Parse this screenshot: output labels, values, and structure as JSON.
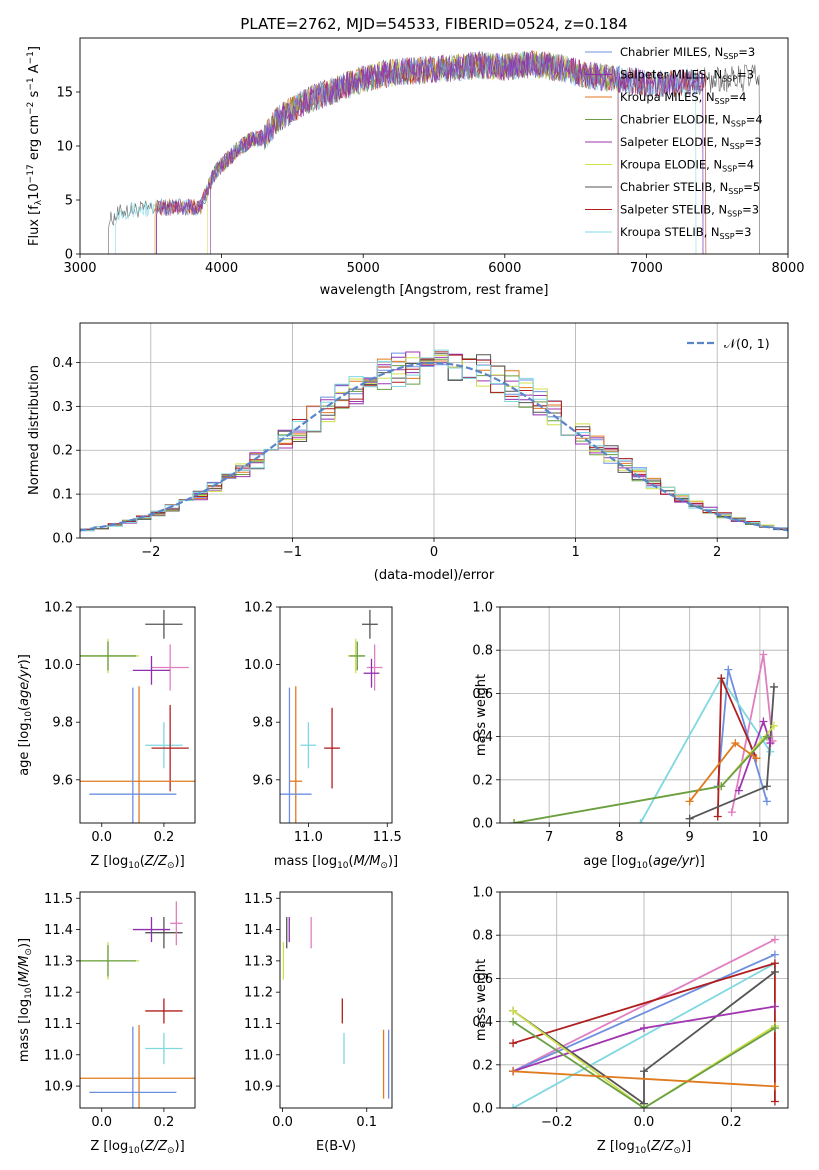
{
  "title": "PLATE=2762, MJD=54533, FIBERID=0524, z=0.184",
  "colors": {
    "chabrier_miles": "#6d8fe0",
    "salpeter_miles": "#8e2fae",
    "kroupa_miles": "#e07a1f",
    "chabrier_elodie": "#6a9f45",
    "salpeter_elodie": "#a235b0",
    "kroupa_elodie": "#cfe04a",
    "chabrier_stelib": "#555555",
    "salpeter_stelib": "#b01e1e",
    "kroupa_stelib": "#7fd8e0",
    "pink": "#e07fc0",
    "normal": "#5a85c8"
  },
  "chart_data": [
    {
      "type": "line",
      "id": "spectrum",
      "xlabel": "wavelength [Angstrom, rest frame]",
      "ylabel": "Flux [f",
      "ylabel_parts": [
        "Flux [f",
        "λ",
        "10",
        "−17",
        " erg cm",
        "−2",
        " s",
        "−1",
        " A",
        "−1",
        "]"
      ],
      "xlim": [
        3000,
        8000
      ],
      "ylim": [
        0,
        20
      ],
      "xticks": [
        "3000",
        "4000",
        "5000",
        "6000",
        "7000",
        "8000"
      ],
      "yticks": [
        "0",
        "5",
        "10",
        "15"
      ],
      "legend_position": "top-right",
      "legend": [
        {
          "label": "Chabrier MILES, N",
          "sub": "SSP",
          "tail": "=3",
          "color": "#6d8fe0"
        },
        {
          "label": "Salpeter MILES, N",
          "sub": "SSP",
          "tail": "=3",
          "color": "#8e2fae"
        },
        {
          "label": "Kroupa MILES, N",
          "sub": "SSP",
          "tail": "=4",
          "color": "#e07a1f"
        },
        {
          "label": "Chabrier ELODIE, N",
          "sub": "SSP",
          "tail": "=4",
          "color": "#6a9f45"
        },
        {
          "label": "Salpeter ELODIE, N",
          "sub": "SSP",
          "tail": "=3",
          "color": "#a235b0"
        },
        {
          "label": "Kroupa ELODIE, N",
          "sub": "SSP",
          "tail": "=4",
          "color": "#cfe04a"
        },
        {
          "label": "Chabrier STELIB, N",
          "sub": "SSP",
          "tail": "=5",
          "color": "#555555"
        },
        {
          "label": "Salpeter STELIB, N",
          "sub": "SSP",
          "tail": "=3",
          "color": "#b01e1e"
        },
        {
          "label": "Kroupa STELIB, N",
          "sub": "SSP",
          "tail": "=3",
          "color": "#7fd8e0"
        }
      ],
      "continuum": [
        [
          3200,
          3.0
        ],
        [
          3300,
          4.0
        ],
        [
          3500,
          4.2
        ],
        [
          3700,
          4.4
        ],
        [
          3850,
          4.3
        ],
        [
          3950,
          7.5
        ],
        [
          4000,
          8.2
        ],
        [
          4100,
          9.5
        ],
        [
          4200,
          10.5
        ],
        [
          4300,
          10.8
        ],
        [
          4400,
          12.5
        ],
        [
          4600,
          14.2
        ],
        [
          4800,
          15.2
        ],
        [
          5000,
          16.2
        ],
        [
          5200,
          16.8
        ],
        [
          5400,
          17.0
        ],
        [
          5600,
          17.2
        ],
        [
          5800,
          17.5
        ],
        [
          6000,
          17.3
        ],
        [
          6200,
          17.6
        ],
        [
          6400,
          17.2
        ],
        [
          6600,
          16.5
        ],
        [
          6800,
          16.2
        ],
        [
          7000,
          15.8
        ],
        [
          7200,
          15.8
        ],
        [
          7400,
          16.0
        ],
        [
          7600,
          16.2
        ],
        [
          7800,
          16.4
        ]
      ],
      "series_ranges": [
        {
          "color": "#555555",
          "start": 3200,
          "end": 7800
        },
        {
          "color": "#7fd8e0",
          "start": 3250,
          "end": 7350
        },
        {
          "color": "#e07a1f",
          "start": 3530,
          "end": 6800
        },
        {
          "color": "#b01e1e",
          "start": 3540,
          "end": 7420
        },
        {
          "color": "#cfe04a",
          "start": 3900,
          "end": 6800
        },
        {
          "color": "#6a9f45",
          "start": 3920,
          "end": 6800
        },
        {
          "color": "#a235b0",
          "start": 3920,
          "end": 6800
        },
        {
          "color": "#6d8fe0",
          "start": 3540,
          "end": 7400
        },
        {
          "color": "#8e2fae",
          "start": 3540,
          "end": 7400
        }
      ]
    },
    {
      "type": "bar",
      "id": "residuals",
      "xlabel": "(data-model)/error",
      "ylabel": "Normed distribution",
      "xlim": [
        -2.5,
        2.5
      ],
      "ylim": [
        0,
        0.49
      ],
      "xticks": [
        "−2",
        "−1",
        "0",
        "1",
        "2"
      ],
      "yticks": [
        "0.0",
        "0.1",
        "0.2",
        "0.3",
        "0.4"
      ],
      "grid": true,
      "legend_position": "top-right",
      "legend": [
        {
          "label": "𝒩(0, 1)",
          "color": "#5a85c8"
        }
      ],
      "bin_width": 0.1,
      "series_colors": [
        "#6d8fe0",
        "#8e2fae",
        "#e07a1f",
        "#6a9f45",
        "#a235b0",
        "#cfe04a",
        "#555555",
        "#b01e1e",
        "#7fd8e0"
      ]
    },
    {
      "type": "scatter",
      "id": "age_vs_Z",
      "xlabel": "Z [log",
      "ylabel": "age  [log",
      "xlim": [
        -0.07,
        0.3
      ],
      "ylim": [
        9.45,
        10.2
      ],
      "xticks": [
        "0.0",
        "0.2"
      ],
      "yticks": [
        "9.6",
        "9.8",
        "10.0",
        "10.2"
      ],
      "points": [
        {
          "x": 0.02,
          "y": 10.03,
          "xerr": 0.1,
          "yerr": 0.06,
          "color": "#cfe04a"
        },
        {
          "x": 0.02,
          "y": 10.03,
          "xerr": 0.09,
          "yerr": 0.05,
          "color": "#6a9f45"
        },
        {
          "x": 0.2,
          "y": 10.14,
          "xerr": 0.06,
          "yerr": 0.05,
          "color": "#555555"
        },
        {
          "x": 0.22,
          "y": 9.99,
          "xerr": 0.06,
          "yerr": 0.08,
          "color": "#e07fc0"
        },
        {
          "x": 0.16,
          "y": 9.98,
          "xerr": 0.06,
          "yerr": 0.05,
          "color": "#8e2fae"
        },
        {
          "x": 0.2,
          "y": 9.72,
          "xerr": 0.06,
          "yerr": 0.08,
          "color": "#7fd8e0"
        },
        {
          "x": 0.22,
          "y": 9.71,
          "xerr": 0.06,
          "yerr": 0.15,
          "color": "#b01e1e"
        },
        {
          "x": 0.12,
          "y": 9.595,
          "xerr": 0.23,
          "yerr": 0.33,
          "color": "#e07a1f"
        },
        {
          "x": 0.1,
          "y": 9.55,
          "xerr": 0.14,
          "yerr": 0.37,
          "color": "#6d8fe0"
        }
      ]
    },
    {
      "type": "scatter",
      "id": "age_vs_mass",
      "xlabel": "mass [log",
      "ylabel": "",
      "xlim": [
        10.82,
        11.53
      ],
      "ylim": [
        9.45,
        10.2
      ],
      "xticks": [
        "11.0",
        "11.5"
      ],
      "yticks": [
        "9.6",
        "9.8",
        "10.0",
        "10.2"
      ],
      "points": [
        {
          "x": 11.3,
          "y": 10.03,
          "xerr": 0.05,
          "yerr": 0.06,
          "color": "#cfe04a"
        },
        {
          "x": 11.31,
          "y": 10.03,
          "xerr": 0.05,
          "yerr": 0.05,
          "color": "#6a9f45"
        },
        {
          "x": 11.39,
          "y": 10.14,
          "xerr": 0.05,
          "yerr": 0.05,
          "color": "#555555"
        },
        {
          "x": 11.42,
          "y": 9.99,
          "xerr": 0.05,
          "yerr": 0.08,
          "color": "#e07fc0"
        },
        {
          "x": 11.4,
          "y": 9.97,
          "xerr": 0.05,
          "yerr": 0.05,
          "color": "#8e2fae"
        },
        {
          "x": 11.0,
          "y": 9.72,
          "xerr": 0.05,
          "yerr": 0.08,
          "color": "#7fd8e0"
        },
        {
          "x": 11.15,
          "y": 9.71,
          "xerr": 0.05,
          "yerr": 0.14,
          "color": "#b01e1e"
        },
        {
          "x": 10.92,
          "y": 9.595,
          "xerr": 0.04,
          "yerr": 0.33,
          "color": "#e07a1f"
        },
        {
          "x": 10.88,
          "y": 9.55,
          "xerr": 0.14,
          "yerr": 0.37,
          "color": "#6d8fe0"
        }
      ]
    },
    {
      "type": "line",
      "id": "massweight_vs_age",
      "xlabel": "age  [log",
      "ylabel": "mass weight",
      "xlim": [
        6.3,
        10.4
      ],
      "ylim": [
        0,
        1.0
      ],
      "xticks": [
        "7",
        "8",
        "9",
        "10"
      ],
      "yticks": [
        "0.0",
        "0.2",
        "0.4",
        "0.6",
        "0.8",
        "1.0"
      ],
      "grid": true,
      "series": [
        {
          "color": "#e07fc0",
          "points": [
            [
              9.6,
              0.05
            ],
            [
              10.05,
              0.78
            ],
            [
              10.18,
              0.38
            ]
          ]
        },
        {
          "color": "#6d8fe0",
          "points": [
            [
              9.4,
              0.17
            ],
            [
              9.55,
              0.71
            ],
            [
              10.1,
              0.1
            ]
          ]
        },
        {
          "color": "#7fd8e0",
          "points": [
            [
              8.3,
              0.0
            ],
            [
              9.45,
              0.67
            ],
            [
              10.15,
              0.33
            ]
          ]
        },
        {
          "color": "#b01e1e",
          "points": [
            [
              9.4,
              0.03
            ],
            [
              9.45,
              0.67
            ],
            [
              9.95,
              0.3
            ]
          ]
        },
        {
          "color": "#555555",
          "points": [
            [
              9.0,
              0.02
            ],
            [
              10.1,
              0.17
            ],
            [
              10.2,
              0.63
            ]
          ]
        },
        {
          "color": "#a235b0",
          "points": [
            [
              9.7,
              0.15
            ],
            [
              10.05,
              0.47
            ],
            [
              10.15,
              0.37
            ]
          ]
        },
        {
          "color": "#cfe04a",
          "points": [
            [
              6.5,
              0.0
            ],
            [
              9.45,
              0.17
            ],
            [
              10.2,
              0.45
            ]
          ]
        },
        {
          "color": "#6a9f45",
          "points": [
            [
              6.5,
              0.0
            ],
            [
              9.45,
              0.17
            ],
            [
              10.1,
              0.4
            ]
          ]
        },
        {
          "color": "#e07a1f",
          "points": [
            [
              9.0,
              0.1
            ],
            [
              9.65,
              0.37
            ],
            [
              9.95,
              0.3
            ]
          ]
        }
      ]
    },
    {
      "type": "scatter",
      "id": "mass_vs_Z",
      "xlabel": "Z [log",
      "ylabel": "mass [log",
      "xlim": [
        -0.07,
        0.3
      ],
      "ylim": [
        10.83,
        11.52
      ],
      "xticks": [
        "0.0",
        "0.2"
      ],
      "yticks": [
        "10.9",
        "11.0",
        "11.1",
        "11.2",
        "11.3",
        "11.4",
        "11.5"
      ],
      "points": [
        {
          "x": 0.02,
          "y": 11.3,
          "xerr": 0.1,
          "yerr": 0.06,
          "color": "#cfe04a"
        },
        {
          "x": 0.02,
          "y": 11.3,
          "xerr": 0.09,
          "yerr": 0.05,
          "color": "#6a9f45"
        },
        {
          "x": 0.2,
          "y": 11.39,
          "xerr": 0.06,
          "yerr": 0.05,
          "color": "#555555"
        },
        {
          "x": 0.24,
          "y": 11.42,
          "xerr": 0.02,
          "yerr": 0.07,
          "color": "#e07fc0"
        },
        {
          "x": 0.16,
          "y": 11.4,
          "xerr": 0.06,
          "yerr": 0.04,
          "color": "#8e2fae"
        },
        {
          "x": 0.2,
          "y": 11.02,
          "xerr": 0.06,
          "yerr": 0.05,
          "color": "#7fd8e0"
        },
        {
          "x": 0.2,
          "y": 11.14,
          "xerr": 0.06,
          "yerr": 0.04,
          "color": "#b01e1e"
        },
        {
          "x": 0.12,
          "y": 10.925,
          "xerr": 0.23,
          "yerr": 0.17,
          "color": "#e07a1f"
        },
        {
          "x": 0.1,
          "y": 10.88,
          "xerr": 0.14,
          "yerr": 0.21,
          "color": "#6d8fe0"
        }
      ]
    },
    {
      "type": "scatter",
      "id": "mass_vs_EBV",
      "xlabel": "E(B-V)",
      "ylabel": "",
      "xlim": [
        -0.003,
        0.13
      ],
      "ylim": [
        10.83,
        11.52
      ],
      "xticks": [
        "0.0",
        "0.1"
      ],
      "yticks": [
        "10.9",
        "11.0",
        "11.1",
        "11.2",
        "11.3",
        "11.4",
        "11.5"
      ],
      "points": [
        {
          "x": 0.001,
          "y": 11.3,
          "xerr": 0.0,
          "yerr": 0.06,
          "color": "#cfe04a"
        },
        {
          "x": 0.005,
          "y": 11.39,
          "xerr": 0.0,
          "yerr": 0.05,
          "color": "#555555"
        },
        {
          "x": 0.034,
          "y": 11.39,
          "xerr": 0.0,
          "yerr": 0.05,
          "color": "#e07fc0"
        },
        {
          "x": 0.008,
          "y": 11.4,
          "xerr": 0.0,
          "yerr": 0.04,
          "color": "#8e2fae"
        },
        {
          "x": 0.073,
          "y": 11.02,
          "xerr": 0.0,
          "yerr": 0.05,
          "color": "#7fd8e0"
        },
        {
          "x": 0.071,
          "y": 11.14,
          "xerr": 0.0,
          "yerr": 0.04,
          "color": "#b01e1e"
        },
        {
          "x": 0.12,
          "y": 10.97,
          "xerr": 0.0,
          "yerr": 0.11,
          "color": "#e07a1f"
        },
        {
          "x": 0.126,
          "y": 10.97,
          "xerr": 0.0,
          "yerr": 0.11,
          "color": "#6d8fe0"
        }
      ]
    },
    {
      "type": "line",
      "id": "massweight_vs_Z",
      "xlabel": "Z [log",
      "ylabel": "mass weight",
      "xlim": [
        -0.33,
        0.33
      ],
      "ylim": [
        0,
        1.0
      ],
      "xticks": [
        "−0.2",
        "0.0",
        "0.2"
      ],
      "yticks": [
        "0.0",
        "0.2",
        "0.4",
        "0.6",
        "0.8",
        "1.0"
      ],
      "grid": true,
      "series": [
        {
          "color": "#e07fc0",
          "points": [
            [
              -0.3,
              0.17
            ],
            [
              0.3,
              0.78
            ]
          ]
        },
        {
          "color": "#6d8fe0",
          "points": [
            [
              -0.3,
              0.17
            ],
            [
              0.3,
              0.71
            ]
          ]
        },
        {
          "color": "#7fd8e0",
          "points": [
            [
              -0.3,
              0.0
            ],
            [
              0.3,
              0.67
            ]
          ]
        },
        {
          "color": "#b01e1e",
          "points": [
            [
              -0.3,
              0.3
            ],
            [
              0.3,
              0.67
            ],
            [
              0.3,
              0.03
            ]
          ]
        },
        {
          "color": "#555555",
          "points": [
            [
              -0.3,
              0.45
            ],
            [
              0.0,
              0.02
            ],
            [
              0.0,
              0.17
            ],
            [
              0.3,
              0.63
            ]
          ]
        },
        {
          "color": "#a235b0",
          "points": [
            [
              -0.3,
              0.17
            ],
            [
              0.0,
              0.37
            ],
            [
              0.3,
              0.47
            ]
          ]
        },
        {
          "color": "#cfe04a",
          "points": [
            [
              -0.3,
              0.45
            ],
            [
              0.0,
              0.0
            ],
            [
              0.3,
              0.38
            ]
          ]
        },
        {
          "color": "#6a9f45",
          "points": [
            [
              -0.3,
              0.4
            ],
            [
              0.0,
              0.0
            ],
            [
              0.3,
              0.37
            ]
          ]
        },
        {
          "color": "#e07a1f",
          "points": [
            [
              -0.3,
              0.17
            ],
            [
              0.3,
              0.1
            ]
          ]
        }
      ]
    }
  ]
}
